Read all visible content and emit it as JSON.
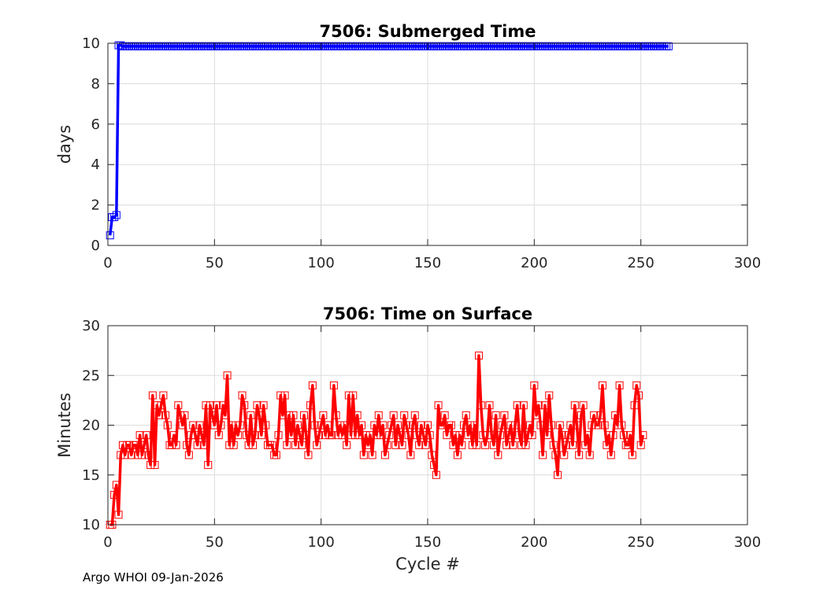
{
  "footer_text": "Argo WHOI 09-Jan-2026",
  "chart_data": [
    {
      "type": "line",
      "title": "7506: Submerged Time",
      "xlabel": "",
      "ylabel": "days",
      "xlim": [
        0,
        300
      ],
      "ylim": [
        0,
        10
      ],
      "xticks": [
        0,
        50,
        100,
        150,
        200,
        250,
        300
      ],
      "yticks": [
        0,
        2,
        4,
        6,
        8,
        10
      ],
      "grid": true,
      "color": "#0000ff",
      "marker": "square",
      "series": [
        {
          "x_start": 1,
          "values": [
            0.5,
            1.4,
            1.4,
            1.5,
            9.9,
            9.9,
            9.85,
            9.85,
            9.85,
            9.85,
            9.85,
            9.85,
            9.85,
            9.85,
            9.85,
            9.85,
            9.85,
            9.85,
            9.85,
            9.85,
            9.85,
            9.85,
            9.85,
            9.85,
            9.85,
            9.85,
            9.85,
            9.85,
            9.85,
            9.85,
            9.85,
            9.85,
            9.85,
            9.85,
            9.85,
            9.85,
            9.85,
            9.85,
            9.85,
            9.85,
            9.85,
            9.85,
            9.85,
            9.85,
            9.85,
            9.85,
            9.85,
            9.85,
            9.85,
            9.85,
            9.85,
            9.85,
            9.85,
            9.85,
            9.85,
            9.85,
            9.85,
            9.85,
            9.85,
            9.85,
            9.85,
            9.85,
            9.85,
            9.85,
            9.85,
            9.85,
            9.85,
            9.85,
            9.85,
            9.85,
            9.85,
            9.85,
            9.85,
            9.85,
            9.85,
            9.85,
            9.85,
            9.85,
            9.85,
            9.85,
            9.85,
            9.85,
            9.85,
            9.85,
            9.85,
            9.85,
            9.85,
            9.85,
            9.85,
            9.85,
            9.85,
            9.85,
            9.85,
            9.85,
            9.85,
            9.85,
            9.85,
            9.85,
            9.85,
            9.85,
            9.85,
            9.85,
            9.85,
            9.85,
            9.85,
            9.85,
            9.85,
            9.85,
            9.85,
            9.85,
            9.85,
            9.85,
            9.85,
            9.85,
            9.85,
            9.85,
            9.85,
            9.85,
            9.85,
            9.85,
            9.85,
            9.85,
            9.85,
            9.85,
            9.85,
            9.85,
            9.85,
            9.85,
            9.85,
            9.85,
            9.85,
            9.85,
            9.85,
            9.85,
            9.85,
            9.85,
            9.85,
            9.85,
            9.85,
            9.85,
            9.85,
            9.85,
            9.85,
            9.85,
            9.85,
            9.85,
            9.85,
            9.85,
            9.85,
            9.85,
            9.85,
            9.85,
            9.85,
            9.85,
            9.85,
            9.85,
            9.85,
            9.85,
            9.85,
            9.85,
            9.85,
            9.85,
            9.85,
            9.85,
            9.85,
            9.85,
            9.85,
            9.85,
            9.85,
            9.85,
            9.85,
            9.85,
            9.85,
            9.85,
            9.85,
            9.85,
            9.85,
            9.85,
            9.85,
            9.85,
            9.85,
            9.85,
            9.85,
            9.85,
            9.85,
            9.85,
            9.85,
            9.85,
            9.85,
            9.85,
            9.85,
            9.85,
            9.85,
            9.85,
            9.85,
            9.85,
            9.85,
            9.85,
            9.85,
            9.85,
            9.85,
            9.85,
            9.85,
            9.85,
            9.85,
            9.85,
            9.85,
            9.85,
            9.85,
            9.85,
            9.85,
            9.85,
            9.85,
            9.85,
            9.85,
            9.85,
            9.85,
            9.85,
            9.85,
            9.85,
            9.85,
            9.85,
            9.85,
            9.85,
            9.85,
            9.85,
            9.85,
            9.85,
            9.85,
            9.85,
            9.85,
            9.85,
            9.85,
            9.85,
            9.85,
            9.85,
            9.85,
            9.85,
            9.85,
            9.85,
            9.85,
            9.85,
            9.85,
            9.85,
            9.85,
            9.85,
            9.85,
            9.85,
            9.85,
            9.85,
            9.85,
            9.85,
            9.85,
            9.85,
            9.85,
            9.85,
            9.85,
            9.85,
            9.85,
            9.85,
            9.85,
            9.85,
            9.85
          ]
        }
      ]
    },
    {
      "type": "line",
      "title": "7506: Time on Surface",
      "xlabel": "Cycle #",
      "ylabel": "Minutes",
      "xlim": [
        0,
        300
      ],
      "ylim": [
        10,
        30
      ],
      "xticks": [
        0,
        50,
        100,
        150,
        200,
        250,
        300
      ],
      "yticks": [
        10,
        15,
        20,
        25,
        30
      ],
      "grid": true,
      "color": "#ff0000",
      "marker": "square",
      "series": [
        {
          "x_start": 1,
          "values": [
            10,
            10,
            13,
            14,
            11,
            17,
            18,
            17,
            18,
            18,
            17,
            18,
            18,
            17,
            19,
            17,
            18,
            19,
            17,
            16,
            23,
            16,
            22,
            21,
            22,
            23,
            21,
            20,
            18,
            18,
            19,
            18,
            22,
            21,
            20,
            21,
            18,
            17,
            19,
            20,
            19,
            18,
            20,
            19,
            18,
            22,
            16,
            22,
            21,
            20,
            22,
            19,
            20,
            22,
            21,
            25,
            18,
            20,
            18,
            20,
            19,
            20,
            23,
            22,
            19,
            18,
            21,
            18,
            19,
            22,
            21,
            19,
            22,
            20,
            18,
            18,
            18,
            17,
            17,
            19,
            23,
            21,
            23,
            18,
            21,
            19,
            21,
            18,
            20,
            19,
            18,
            21,
            19,
            17,
            22,
            24,
            20,
            18,
            19,
            20,
            21,
            19,
            20,
            19,
            19,
            24,
            21,
            19,
            20,
            19,
            20,
            18,
            23,
            19,
            23,
            19,
            21,
            19,
            20,
            17,
            19,
            18,
            19,
            17,
            20,
            19,
            21,
            19,
            20,
            17,
            18,
            19,
            20,
            21,
            18,
            20,
            19,
            18,
            21,
            20,
            19,
            17,
            20,
            21,
            19,
            18,
            20,
            19,
            18,
            20,
            19,
            17,
            16,
            15,
            22,
            20,
            20,
            21,
            19,
            20,
            20,
            18,
            19,
            17,
            19,
            18,
            20,
            21,
            19,
            20,
            18,
            20,
            18,
            27,
            22,
            19,
            18,
            19,
            22,
            19,
            18,
            21,
            17,
            19,
            20,
            21,
            18,
            19,
            20,
            18,
            20,
            22,
            19,
            18,
            22,
            18,
            19,
            20,
            19,
            24,
            21,
            22,
            20,
            17,
            22,
            19,
            23,
            20,
            18,
            17,
            15,
            20,
            19,
            17,
            18,
            19,
            20,
            18,
            22,
            20,
            17,
            21,
            22,
            18,
            19,
            17,
            20,
            21,
            20,
            20,
            21,
            24,
            20,
            18,
            19,
            17,
            19,
            21,
            20,
            24,
            20,
            19,
            18,
            18,
            19,
            17,
            22,
            24,
            23,
            18,
            19
          ]
        }
      ]
    }
  ]
}
